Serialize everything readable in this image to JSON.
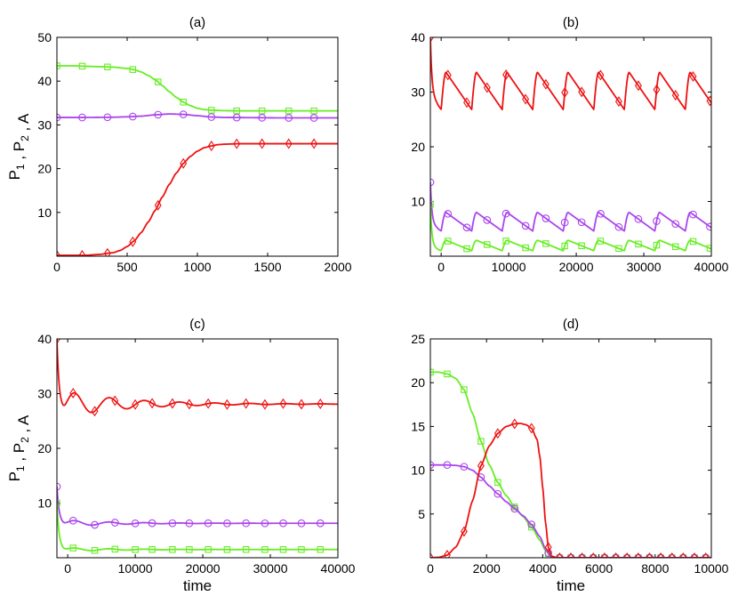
{
  "chart_data": [
    {
      "id": "a",
      "type": "line",
      "title": "(a)",
      "xlabel": "",
      "ylabel": "P_1 , P_2 , A",
      "xlim": [
        0,
        2000
      ],
      "ylim": [
        0,
        50
      ],
      "xticks": [
        0,
        500,
        1000,
        1500,
        2000
      ],
      "yticks": [
        10,
        20,
        30,
        40,
        50
      ],
      "xtick_labels": [
        "0",
        "500",
        "1000",
        "1500",
        "2000"
      ],
      "ytick_labels": [
        "10",
        "20",
        "30",
        "40",
        "50"
      ],
      "series": [
        {
          "name": "green",
          "color": "#66ee22",
          "marker": "square",
          "x": [
            0,
            100,
            200,
            300,
            400,
            500,
            550,
            600,
            650,
            700,
            750,
            800,
            850,
            900,
            950,
            1000,
            1050,
            1100,
            1200,
            1300,
            1400,
            1500,
            1600,
            1700,
            1800,
            1900,
            2000
          ],
          "y": [
            43.5,
            43.5,
            43.4,
            43.3,
            43.2,
            42.9,
            42.6,
            42.1,
            41.3,
            40.3,
            39.0,
            37.6,
            36.3,
            35.2,
            34.4,
            33.8,
            33.5,
            33.35,
            33.25,
            33.2,
            33.2,
            33.2,
            33.2,
            33.2,
            33.2,
            33.2,
            33.2
          ],
          "marker_x": [
            0,
            180,
            360,
            540,
            720,
            900,
            1100,
            1280,
            1460,
            1650,
            1830
          ]
        },
        {
          "name": "purple",
          "color": "#aa44ee",
          "marker": "circle",
          "x": [
            0,
            200,
            400,
            500,
            600,
            700,
            800,
            900,
            1000,
            1100,
            1200,
            1400,
            1600,
            1800,
            2000
          ],
          "y": [
            31.7,
            31.7,
            31.75,
            31.85,
            32.0,
            32.3,
            32.5,
            32.4,
            32.1,
            31.8,
            31.7,
            31.65,
            31.6,
            31.6,
            31.6
          ],
          "marker_x": [
            0,
            180,
            360,
            540,
            720,
            900,
            1100,
            1280,
            1460,
            1650,
            1830
          ]
        },
        {
          "name": "red",
          "color": "#ee1111",
          "marker": "diamond",
          "x": [
            0,
            200,
            300,
            400,
            450,
            500,
            550,
            600,
            650,
            700,
            750,
            800,
            850,
            900,
            950,
            1000,
            1050,
            1100,
            1150,
            1200,
            1300,
            1400,
            1500,
            1700,
            2000
          ],
          "y": [
            0.2,
            0.2,
            0.4,
            0.8,
            1.3,
            2.2,
            3.5,
            5.4,
            7.8,
            10.5,
            13.5,
            16.4,
            19.0,
            21.2,
            22.8,
            24.0,
            24.8,
            25.2,
            25.5,
            25.6,
            25.7,
            25.7,
            25.7,
            25.7,
            25.7
          ],
          "marker_x": [
            0,
            180,
            360,
            540,
            720,
            900,
            1100,
            1280,
            1460,
            1650,
            1830
          ]
        }
      ]
    },
    {
      "id": "b",
      "type": "line",
      "title": "(b)",
      "xlabel": "",
      "ylabel": "",
      "xlim": [
        -1600,
        40000
      ],
      "ylim": [
        0,
        40
      ],
      "xticks": [
        0,
        10000,
        20000,
        30000,
        40000
      ],
      "yticks": [
        10,
        20,
        30,
        40
      ],
      "xtick_labels": [
        "0",
        "10000",
        "20000",
        "30000",
        "40000"
      ],
      "ytick_labels": [
        "10",
        "20",
        "30",
        "40"
      ],
      "series": [
        {
          "name": "red",
          "color": "#ee1111",
          "marker": "diamond",
          "pattern": "oscillation",
          "start": 40,
          "base": 26.8,
          "amp": 6.8,
          "period": 4520,
          "offset": 0,
          "marker_x": [
            -1600,
            1000,
            3800,
            6800,
            9600,
            12500,
            15500,
            18300,
            20800,
            23600,
            26300,
            29200,
            31900,
            34700,
            37300,
            39800
          ]
        },
        {
          "name": "purple",
          "color": "#aa44ee",
          "marker": "circle",
          "pattern": "oscillation",
          "start": 13.5,
          "base": 4.6,
          "amp": 3.4,
          "period": 4520,
          "offset": 0,
          "marker_x": [
            -1600,
            1000,
            3800,
            6800,
            9600,
            12500,
            15500,
            18300,
            20800,
            23600,
            26300,
            29200,
            31900,
            34700,
            37300,
            39800
          ]
        },
        {
          "name": "green",
          "color": "#66ee22",
          "marker": "square",
          "pattern": "oscillation",
          "start": 9.5,
          "base": 1.0,
          "amp": 1.9,
          "period": 4520,
          "offset": 0,
          "marker_x": [
            -1600,
            1000,
            3800,
            6800,
            9600,
            12500,
            15500,
            18300,
            20800,
            23600,
            26300,
            29200,
            31900,
            34700,
            37300,
            39800
          ]
        }
      ]
    },
    {
      "id": "c",
      "type": "line",
      "title": "(c)",
      "xlabel": "time",
      "ylabel": "P_1 , P_2 , A",
      "xlim": [
        -1600,
        40000
      ],
      "ylim": [
        0,
        40
      ],
      "xticks": [
        0,
        10000,
        20000,
        30000,
        40000
      ],
      "yticks": [
        10,
        20,
        30,
        40
      ],
      "xtick_labels": [
        "0",
        "10000",
        "20000",
        "30000",
        "40000"
      ],
      "ytick_labels": [
        "10",
        "20",
        "30",
        "40"
      ],
      "series": [
        {
          "name": "red",
          "color": "#ee1111",
          "marker": "diamond",
          "pattern": "damped",
          "start": 40,
          "dip": 26.5,
          "settle": 28.1,
          "amp": 2.4,
          "period": 5200,
          "decay": 9000,
          "marker_x": [
            -1600,
            800,
            4000,
            7000,
            10000,
            12500,
            15500,
            18000,
            20800,
            23600,
            26400,
            29200,
            31900,
            34600,
            37400
          ]
        },
        {
          "name": "purple",
          "color": "#aa44ee",
          "marker": "circle",
          "pattern": "damped",
          "start": 13.0,
          "dip": 6.0,
          "settle": 6.3,
          "amp": 0.6,
          "period": 5200,
          "decay": 7000,
          "marker_x": [
            -1600,
            800,
            4000,
            7000,
            10000,
            12500,
            15500,
            18000,
            20800,
            23600,
            26400,
            29200,
            31900,
            34600,
            37400
          ]
        },
        {
          "name": "green",
          "color": "#66ee22",
          "marker": "square",
          "pattern": "damped",
          "start": 10.0,
          "dip": 1.1,
          "settle": 1.5,
          "amp": 0.35,
          "period": 5200,
          "decay": 7000,
          "marker_x": [
            -1600,
            800,
            4000,
            7000,
            10000,
            12500,
            15500,
            18000,
            20800,
            23600,
            26400,
            29200,
            31900,
            34600,
            37400
          ]
        }
      ]
    },
    {
      "id": "d",
      "type": "line",
      "title": "(d)",
      "xlabel": "time",
      "ylabel": "",
      "xlim": [
        0,
        10000
      ],
      "ylim": [
        0,
        25
      ],
      "xticks": [
        0,
        2000,
        4000,
        6000,
        8000,
        10000
      ],
      "yticks": [
        5,
        10,
        15,
        20,
        25
      ],
      "xtick_labels": [
        "0",
        "2000",
        "4000",
        "6000",
        "8000",
        "10000"
      ],
      "ytick_labels": [
        "5",
        "10",
        "15",
        "20",
        "25"
      ],
      "series": [
        {
          "name": "green",
          "color": "#66ee22",
          "marker": "square",
          "x": [
            0,
            300,
            600,
            900,
            1200,
            1500,
            1800,
            2100,
            2400,
            2700,
            3000,
            3300,
            3600,
            3900,
            4100,
            4300,
            4500,
            5000,
            6000,
            7000,
            8000,
            9000,
            10000
          ],
          "y": [
            21.2,
            21.2,
            21.0,
            20.5,
            19.2,
            16.5,
            13.3,
            10.6,
            8.6,
            7.1,
            5.8,
            4.7,
            3.5,
            2.0,
            0.8,
            0.1,
            0,
            0,
            0,
            0,
            0,
            0,
            0
          ],
          "marker_x": [
            0,
            600,
            1200,
            1800,
            2400,
            3000,
            3600,
            4200,
            4600,
            5000,
            5400,
            5800,
            6200,
            6600,
            7000,
            7400,
            7800,
            8200,
            8600,
            9000,
            9400,
            9800
          ]
        },
        {
          "name": "purple",
          "color": "#aa44ee",
          "marker": "circle",
          "x": [
            0,
            300,
            600,
            900,
            1200,
            1500,
            1800,
            2100,
            2400,
            2700,
            3000,
            3300,
            3600,
            3900,
            4100,
            4300,
            4500,
            5000,
            6000,
            7000,
            8000,
            9000,
            10000
          ],
          "y": [
            10.6,
            10.6,
            10.6,
            10.55,
            10.4,
            10.0,
            9.2,
            8.2,
            7.3,
            6.4,
            5.6,
            4.8,
            3.8,
            2.4,
            1.0,
            0.1,
            0,
            0,
            0,
            0,
            0,
            0,
            0
          ],
          "marker_x": [
            0,
            600,
            1200,
            1800,
            2400,
            3000,
            3600,
            4200,
            4600,
            5000,
            5400,
            5800,
            6200,
            6600,
            7000,
            7400,
            7800,
            8200,
            8600,
            9000,
            9400,
            9800
          ]
        },
        {
          "name": "red",
          "color": "#ee1111",
          "marker": "diamond",
          "x": [
            0,
            300,
            600,
            900,
            1200,
            1500,
            1800,
            2100,
            2400,
            2700,
            3000,
            3200,
            3400,
            3600,
            3800,
            3900,
            4000,
            4100,
            4200,
            4300,
            4500,
            5000,
            6000,
            7000,
            8000,
            9000,
            10000
          ],
          "y": [
            0,
            0.05,
            0.3,
            1.2,
            3.0,
            6.5,
            10.5,
            12.8,
            14.2,
            15.0,
            15.3,
            15.35,
            15.2,
            14.8,
            13.5,
            11.5,
            8.0,
            4.0,
            1.2,
            0.2,
            0,
            0,
            0,
            0,
            0,
            0,
            0
          ],
          "marker_x": [
            0,
            600,
            1200,
            1800,
            2400,
            3000,
            3600,
            4200,
            4600,
            5000,
            5400,
            5800,
            6200,
            6600,
            7000,
            7400,
            7800,
            8200,
            8600,
            9000,
            9400,
            9800
          ]
        }
      ]
    }
  ]
}
